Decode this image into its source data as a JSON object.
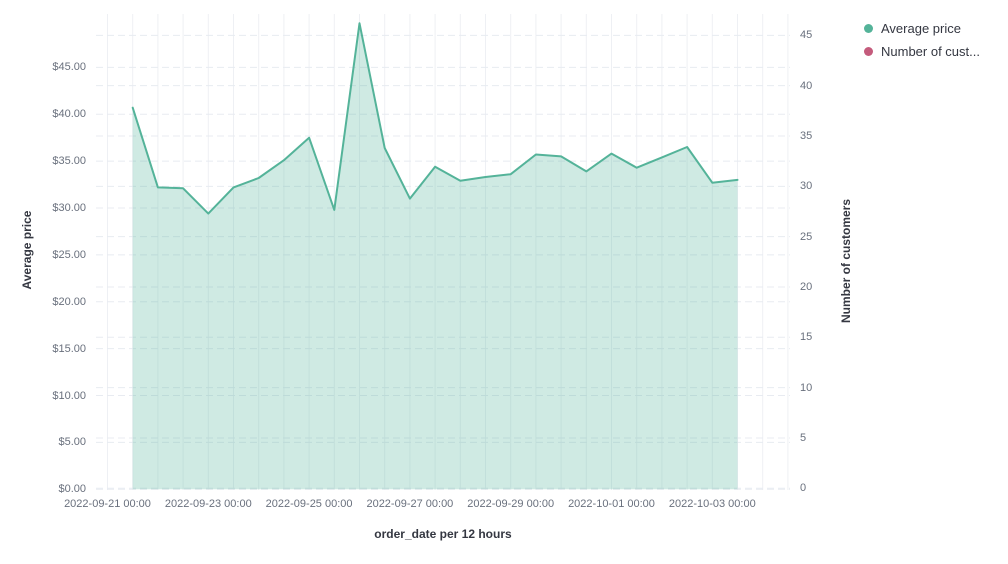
{
  "legend": {
    "position": "top-right",
    "items": [
      {
        "label": "Average price",
        "color": "#54B399"
      },
      {
        "label": "Number of cust...",
        "color": "#C45B7C"
      }
    ]
  },
  "chart_data": {
    "type": "area",
    "title": "",
    "xlabel": "order_date per 12 hours",
    "ylabel": "Average price",
    "ylabel_right": "Number of customers",
    "x_tick_labels": [
      "2022-09-21 00:00",
      "2022-09-23 00:00",
      "2022-09-25 00:00",
      "2022-09-27 00:00",
      "2022-09-29 00:00",
      "2022-10-01 00:00",
      "2022-10-03 00:00"
    ],
    "y_left_tick_labels": [
      "$0.00",
      "$5.00",
      "$10.00",
      "$15.00",
      "$20.00",
      "$25.00",
      "$30.00",
      "$35.00",
      "$40.00",
      "$45.00"
    ],
    "y_right_tick_labels": [
      "0",
      "5",
      "10",
      "15",
      "20",
      "25",
      "30",
      "35",
      "40",
      "45"
    ],
    "ylim_left": [
      0,
      50
    ],
    "ylim_right": [
      0,
      45
    ],
    "grid": true,
    "point_interval": "12 hours",
    "legend_position": "top-right",
    "series": [
      {
        "name": "Average price",
        "axis": "left",
        "color": "#54B399",
        "fill_opacity": 0.28,
        "x": [
          "2022-09-21 12:00",
          "2022-09-22 00:00",
          "2022-09-22 12:00",
          "2022-09-23 00:00",
          "2022-09-23 12:00",
          "2022-09-24 00:00",
          "2022-09-24 12:00",
          "2022-09-25 00:00",
          "2022-09-25 12:00",
          "2022-09-26 00:00",
          "2022-09-26 12:00",
          "2022-09-27 00:00",
          "2022-09-27 12:00",
          "2022-09-28 00:00",
          "2022-09-28 12:00",
          "2022-09-29 00:00",
          "2022-09-29 12:00",
          "2022-09-30 00:00",
          "2022-09-30 12:00",
          "2022-10-01 00:00",
          "2022-10-01 12:00",
          "2022-10-02 00:00",
          "2022-10-02 12:00",
          "2022-10-03 00:00",
          "2022-10-03 12:00"
        ],
        "values": [
          40.7,
          32.2,
          32.1,
          29.4,
          32.2,
          33.2,
          35.1,
          37.5,
          29.8,
          49.7,
          36.4,
          31.0,
          34.4,
          32.9,
          33.3,
          33.6,
          35.7,
          35.5,
          33.9,
          35.8,
          34.3,
          35.4,
          36.5,
          32.7,
          33.0
        ]
      },
      {
        "name": "Number of customers",
        "legend_label": "Number of cust...",
        "axis": "right",
        "color": "#C45B7C",
        "values": []
      }
    ]
  }
}
